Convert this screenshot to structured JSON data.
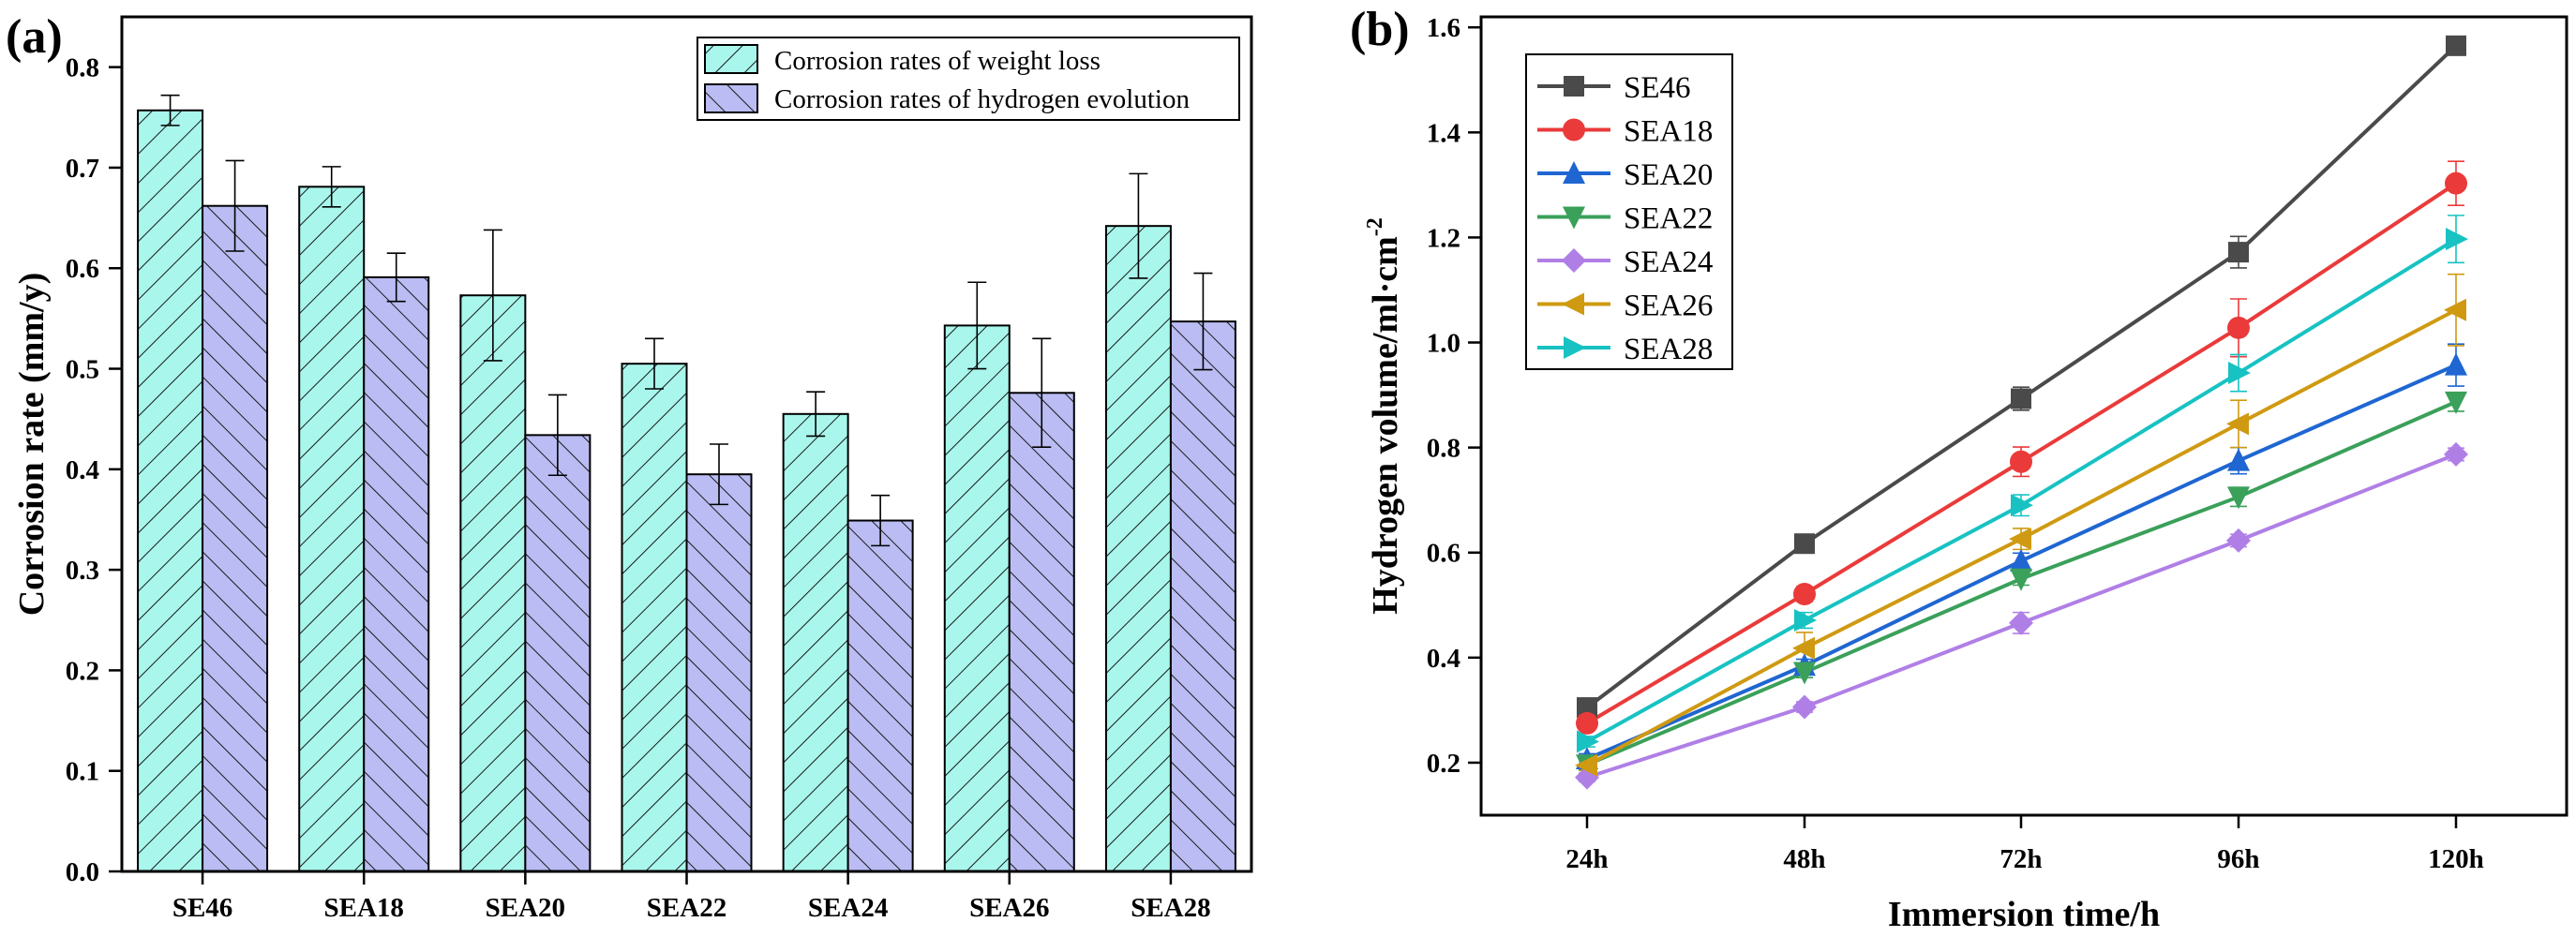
{
  "chart_data": [
    {
      "type": "bar",
      "panel_label": "(a)",
      "categories": [
        "SE46",
        "SEA18",
        "SEA20",
        "SEA22",
        "SEA24",
        "SEA26",
        "SEA28"
      ],
      "ylabel": "Corrosion rate (mm/y)",
      "xlabel": "",
      "ylim": [
        0,
        0.85
      ],
      "yticks": [
        "0.0",
        "0.1",
        "0.2",
        "0.3",
        "0.4",
        "0.5",
        "0.6",
        "0.7",
        "0.8"
      ],
      "legend_position": "top-right",
      "series": [
        {
          "name": "Corrosion rates of weight loss",
          "color": "#a9f6ec",
          "values": [
            0.757,
            0.681,
            0.573,
            0.505,
            0.455,
            0.543,
            0.642
          ],
          "errors": [
            0.015,
            0.02,
            0.065,
            0.025,
            0.022,
            0.043,
            0.052
          ]
        },
        {
          "name": "Corrosion rates of hydrogen evolution",
          "color": "#babcf3",
          "values": [
            0.662,
            0.591,
            0.434,
            0.395,
            0.349,
            0.476,
            0.547
          ],
          "errors": [
            0.045,
            0.024,
            0.04,
            0.03,
            0.025,
            0.054,
            0.048
          ]
        }
      ]
    },
    {
      "type": "line",
      "panel_label": "(b)",
      "categories": [
        "24h",
        "48h",
        "72h",
        "96h",
        "120h"
      ],
      "xlabel": "Immersion time/h",
      "ylabel": "Hydrogen volume/ml·cm",
      "ylabel_sup": "-2",
      "ylim": [
        0.1,
        1.62
      ],
      "yticks": [
        "0.2",
        "0.4",
        "0.6",
        "0.8",
        "1.0",
        "1.2",
        "1.4",
        "1.6"
      ],
      "legend_position": "top-left",
      "series": [
        {
          "name": "SE46",
          "color": "#4a4a4a",
          "marker": "square",
          "values": [
            0.305,
            0.617,
            0.893,
            1.172,
            1.565
          ],
          "errors": [
            0.012,
            0.012,
            0.022,
            0.03,
            0.012
          ]
        },
        {
          "name": "SEA18",
          "color": "#ea3a3a",
          "marker": "circle",
          "values": [
            0.275,
            0.521,
            0.773,
            1.028,
            1.303
          ],
          "errors": [
            0.012,
            0.014,
            0.028,
            0.055,
            0.042
          ]
        },
        {
          "name": "SEA20",
          "color": "#1f66d2",
          "marker": "triangle",
          "values": [
            0.207,
            0.385,
            0.584,
            0.775,
            0.957
          ],
          "errors": [
            0.01,
            0.012,
            0.015,
            0.025,
            0.04
          ]
        },
        {
          "name": "SEA22",
          "color": "#3aa05a",
          "marker": "tri-down",
          "values": [
            0.196,
            0.372,
            0.55,
            0.706,
            0.887
          ],
          "errors": [
            0.008,
            0.01,
            0.012,
            0.018,
            0.018
          ]
        },
        {
          "name": "SEA24",
          "color": "#b07fe6",
          "marker": "diamond",
          "values": [
            0.172,
            0.306,
            0.466,
            0.623,
            0.787
          ],
          "errors": [
            0.008,
            0.01,
            0.02,
            0.012,
            0.012
          ]
        },
        {
          "name": "SEA26",
          "color": "#cf9a12",
          "marker": "tri-left",
          "values": [
            0.195,
            0.418,
            0.626,
            0.845,
            1.062
          ],
          "errors": [
            0.01,
            0.03,
            0.02,
            0.045,
            0.068
          ]
        },
        {
          "name": "SEA28",
          "color": "#18c2c2",
          "marker": "tri-right",
          "values": [
            0.24,
            0.471,
            0.69,
            0.942,
            1.197
          ],
          "errors": [
            0.01,
            0.015,
            0.02,
            0.035,
            0.045
          ]
        }
      ]
    }
  ]
}
